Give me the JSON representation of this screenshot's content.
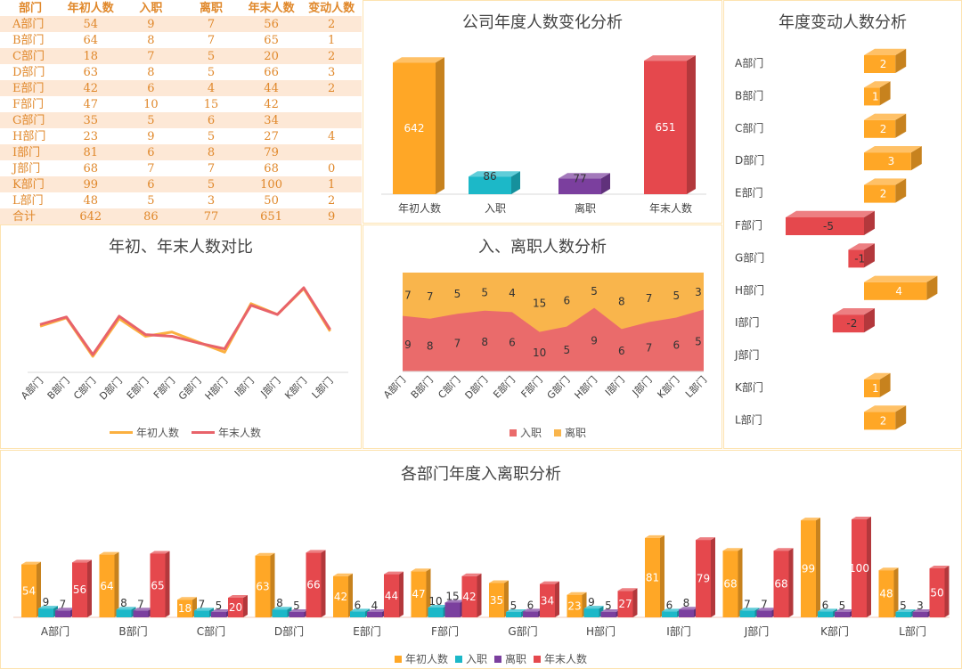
{
  "table": {
    "headers": [
      "部门",
      "年初人数",
      "入职",
      "离职",
      "年末人数",
      "变动人数"
    ],
    "rows": [
      [
        "A部门",
        "54",
        "9",
        "7",
        "56",
        "2"
      ],
      [
        "B部门",
        "64",
        "8",
        "7",
        "65",
        "1"
      ],
      [
        "C部门",
        "18",
        "7",
        "5",
        "20",
        "2"
      ],
      [
        "D部门",
        "63",
        "8",
        "5",
        "66",
        "3"
      ],
      [
        "E部门",
        "42",
        "6",
        "4",
        "44",
        "2"
      ],
      [
        "F部门",
        "47",
        "10",
        "15",
        "42",
        ""
      ],
      [
        "G部门",
        "35",
        "5",
        "6",
        "34",
        ""
      ],
      [
        "H部门",
        "23",
        "9",
        "5",
        "27",
        "4"
      ],
      [
        "I部门",
        "81",
        "6",
        "8",
        "79",
        ""
      ],
      [
        "J部门",
        "68",
        "7",
        "7",
        "68",
        "0"
      ],
      [
        "K部门",
        "99",
        "6",
        "5",
        "100",
        "1"
      ],
      [
        "L部门",
        "48",
        "5",
        "3",
        "50",
        "2"
      ]
    ],
    "total": [
      "合计",
      "642",
      "86",
      "77",
      "651",
      "9"
    ]
  },
  "colors": {
    "orange": "#ffa726",
    "teal": "#1cb8c8",
    "purple": "#7b3f9e",
    "red": "#e5484d",
    "line_orange": "#fbb040",
    "line_red": "#e8636a",
    "area_orange": "#f9b54c",
    "area_red": "#ea6b6b"
  },
  "chart_data": [
    {
      "id": "summary",
      "type": "bar",
      "title": "公司年度人数变化分析",
      "categories": [
        "年初人数",
        "入职",
        "离职",
        "年末人数"
      ],
      "values": [
        642,
        86,
        77,
        651
      ],
      "ylim": [
        0,
        700
      ]
    },
    {
      "id": "change",
      "type": "bar",
      "orientation": "horizontal",
      "title": "年度变动人数分析",
      "categories": [
        "A部门",
        "B部门",
        "C部门",
        "D部门",
        "E部门",
        "F部门",
        "G部门",
        "H部门",
        "I部门",
        "J部门",
        "K部门",
        "L部门"
      ],
      "values": [
        2,
        1,
        2,
        3,
        2,
        -5,
        -1,
        4,
        -2,
        0,
        1,
        2
      ],
      "xlim": [
        -5,
        4
      ]
    },
    {
      "id": "compare",
      "type": "line",
      "title": "年初、年末人数对比",
      "categories": [
        "A部门",
        "B部门",
        "C部门",
        "D部门",
        "E部门",
        "F部门",
        "G部门",
        "H部门",
        "I部门",
        "J部门",
        "K部门",
        "L部门"
      ],
      "series": [
        {
          "name": "年初人数",
          "values": [
            54,
            64,
            18,
            63,
            42,
            47,
            35,
            23,
            81,
            68,
            99,
            48
          ]
        },
        {
          "name": "年末人数",
          "values": [
            56,
            65,
            20,
            66,
            44,
            42,
            34,
            27,
            79,
            68,
            100,
            50
          ]
        }
      ]
    },
    {
      "id": "inout",
      "type": "area",
      "stacked": true,
      "title": "入、离职人数分析",
      "categories": [
        "A部门",
        "B部门",
        "C部门",
        "D部门",
        "E部门",
        "F部门",
        "G部门",
        "H部门",
        "I部门",
        "J部门",
        "K部门",
        "L部门"
      ],
      "series": [
        {
          "name": "入职",
          "values": [
            9,
            8,
            7,
            8,
            6,
            10,
            5,
            9,
            6,
            7,
            6,
            5
          ]
        },
        {
          "name": "离职",
          "values": [
            7,
            7,
            5,
            5,
            4,
            15,
            6,
            5,
            8,
            7,
            5,
            3
          ]
        }
      ]
    },
    {
      "id": "dept",
      "type": "bar",
      "title": "各部门年度入离职分析",
      "categories": [
        "A部门",
        "B部门",
        "C部门",
        "D部门",
        "E部门",
        "F部门",
        "G部门",
        "H部门",
        "I部门",
        "J部门",
        "K部门",
        "L部门"
      ],
      "series": [
        {
          "name": "年初人数",
          "values": [
            54,
            64,
            18,
            63,
            42,
            47,
            35,
            23,
            81,
            68,
            99,
            48
          ]
        },
        {
          "name": "入职",
          "values": [
            9,
            8,
            7,
            8,
            6,
            10,
            5,
            9,
            6,
            7,
            6,
            5
          ]
        },
        {
          "name": "离职",
          "values": [
            7,
            7,
            5,
            5,
            4,
            15,
            6,
            5,
            8,
            7,
            5,
            3
          ]
        },
        {
          "name": "年末人数",
          "values": [
            56,
            65,
            20,
            66,
            44,
            42,
            34,
            27,
            79,
            68,
            100,
            50
          ]
        }
      ]
    }
  ]
}
